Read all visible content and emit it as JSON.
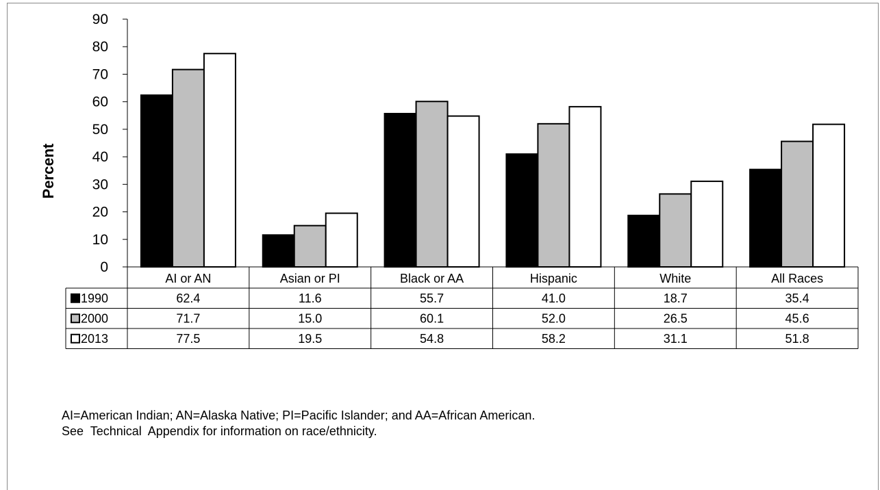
{
  "chart_data": {
    "type": "bar",
    "title": "",
    "xlabel": "",
    "ylabel": "Percent",
    "ylim": [
      0,
      90
    ],
    "yticks": [
      0,
      10,
      20,
      30,
      40,
      50,
      60,
      70,
      80,
      90
    ],
    "categories": [
      "AI or AN",
      "Asian or PI",
      "Black or AA",
      "Hispanic",
      "White",
      "All Races"
    ],
    "series": [
      {
        "name": "1990",
        "color": "#000000",
        "values": [
          62.4,
          11.6,
          55.7,
          41.0,
          18.7,
          35.4
        ],
        "labels": [
          "62.4",
          "11.6",
          "55.7",
          "41.0",
          "18.7",
          "35.4"
        ]
      },
      {
        "name": "2000",
        "color": "#bfbfbf",
        "values": [
          71.7,
          15.0,
          60.1,
          52.0,
          26.5,
          45.6
        ],
        "labels": [
          "71.7",
          "15.0",
          "60.1",
          "52.0",
          "26.5",
          "45.6"
        ]
      },
      {
        "name": "2013",
        "color": "#ffffff",
        "values": [
          77.5,
          19.5,
          54.8,
          58.2,
          31.1,
          51.8
        ],
        "labels": [
          "77.5",
          "19.5",
          "54.8",
          "58.2",
          "31.1",
          "51.8"
        ]
      }
    ],
    "grid": false,
    "legend": "data-table"
  },
  "footnotes": [
    "AI=American Indian; AN=Alaska Native; PI=Pacific Islander; and AA=African American.",
    "See  Technical  Appendix for information on race/ethnicity."
  ]
}
